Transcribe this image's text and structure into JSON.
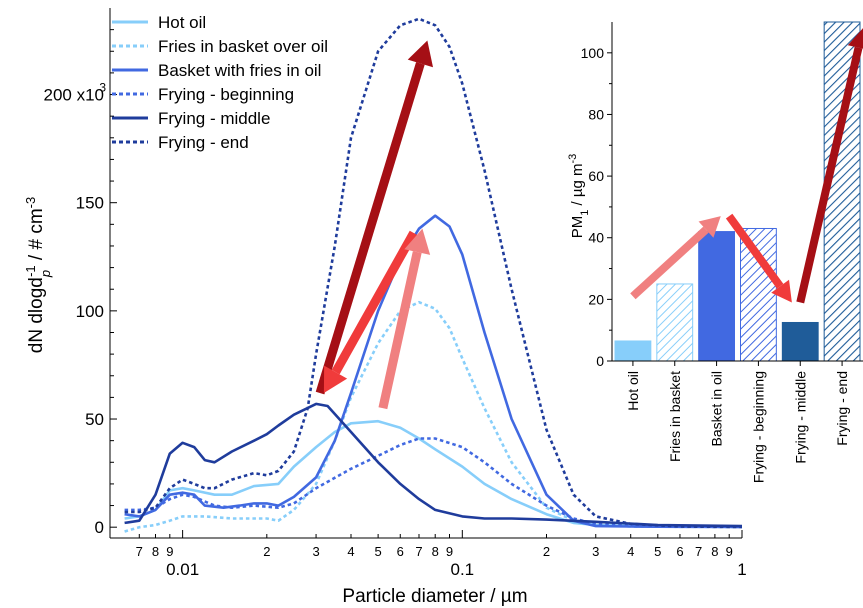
{
  "chart_data": [
    {
      "type": "line",
      "xscale": "log",
      "xlim": [
        0.0055,
        1.0
      ],
      "ylim": [
        -5000,
        240000
      ],
      "xlabel": "Particle diameter / µm",
      "ylabel": "dN dlogd",
      "ylabel_sub": "p",
      "ylabel_sup": "-1",
      "ylabel_tail": " / # cm",
      "ylabel_tail_sup": "-3",
      "ytick_values": [
        0,
        50000,
        100000,
        150000,
        200000
      ],
      "ytick_labels": [
        "0",
        "50",
        "100",
        "150",
        "200 x10"
      ],
      "ytick_exp_label": "3",
      "xtick_major_values": [
        0.01,
        0.1,
        1
      ],
      "xtick_major_labels": [
        "0.01",
        "0.1",
        "1"
      ],
      "xtick_minor_values": [
        0.007,
        0.008,
        0.009,
        0.02,
        0.03,
        0.04,
        0.05,
        0.06,
        0.07,
        0.08,
        0.09,
        0.2,
        0.3,
        0.4,
        0.5,
        0.6,
        0.7,
        0.8,
        0.9
      ],
      "xtick_minor_labels": [
        "7",
        "8",
        "9",
        "2",
        "3",
        "4",
        "5",
        "6",
        "7",
        "8",
        "9",
        "2",
        "3",
        "4",
        "5",
        "6",
        "7",
        "8",
        "9"
      ],
      "legend_position": "top-left",
      "series": [
        {
          "name": "Hot oil",
          "color": "#87CEFA",
          "dash": "solid",
          "x": [
            0.0062,
            0.007,
            0.008,
            0.009,
            0.01,
            0.011,
            0.013,
            0.015,
            0.018,
            0.022,
            0.025,
            0.03,
            0.035,
            0.04,
            0.05,
            0.06,
            0.07,
            0.08,
            0.1,
            0.12,
            0.15,
            0.2,
            0.25,
            0.3,
            0.4,
            0.6,
            1.0
          ],
          "y": [
            4000,
            5000,
            8000,
            17000,
            18000,
            17000,
            15000,
            15000,
            19000,
            20000,
            28000,
            37000,
            44000,
            48000,
            49000,
            46000,
            41000,
            36000,
            28000,
            20000,
            13000,
            6000,
            2000,
            1000,
            500,
            300,
            200
          ]
        },
        {
          "name": "Fries in basket over oil",
          "color": "#87CEFA",
          "dash": "dotted",
          "x": [
            0.0062,
            0.007,
            0.008,
            0.009,
            0.01,
            0.012,
            0.015,
            0.02,
            0.022,
            0.025,
            0.03,
            0.035,
            0.04,
            0.05,
            0.06,
            0.07,
            0.08,
            0.09,
            0.1,
            0.12,
            0.15,
            0.2,
            0.25,
            0.3,
            0.4,
            0.6,
            1.0
          ],
          "y": [
            -2000,
            0,
            1000,
            3000,
            5000,
            5000,
            4000,
            4000,
            3000,
            8000,
            20000,
            40000,
            60000,
            85000,
            100000,
            104000,
            101000,
            92000,
            78000,
            55000,
            30000,
            9000,
            3000,
            1000,
            300,
            200,
            100
          ]
        },
        {
          "name": "Basket with fries in oil",
          "color": "#4169E1",
          "dash": "solid",
          "x": [
            0.0062,
            0.007,
            0.008,
            0.009,
            0.01,
            0.011,
            0.012,
            0.014,
            0.016,
            0.018,
            0.02,
            0.022,
            0.025,
            0.03,
            0.035,
            0.04,
            0.05,
            0.06,
            0.07,
            0.08,
            0.09,
            0.1,
            0.12,
            0.15,
            0.2,
            0.25,
            0.3,
            0.4,
            0.6,
            1.0
          ],
          "y": [
            6000,
            5000,
            8000,
            15000,
            16000,
            15000,
            10000,
            9000,
            10000,
            11000,
            11000,
            10000,
            14000,
            23000,
            40000,
            62000,
            100000,
            124000,
            138000,
            144000,
            139000,
            126000,
            90000,
            50000,
            15000,
            3000,
            500,
            300,
            200,
            100
          ]
        },
        {
          "name": "Frying - beginning",
          "color": "#4169E1",
          "dash": "dotted",
          "x": [
            0.0062,
            0.007,
            0.008,
            0.009,
            0.01,
            0.011,
            0.013,
            0.015,
            0.018,
            0.022,
            0.025,
            0.03,
            0.04,
            0.05,
            0.06,
            0.07,
            0.08,
            0.1,
            0.12,
            0.15,
            0.2,
            0.25,
            0.3,
            0.4,
            0.6,
            1.0
          ],
          "y": [
            8000,
            8000,
            9000,
            13000,
            15000,
            14000,
            10000,
            9000,
            10000,
            9000,
            11000,
            18000,
            27000,
            33000,
            38000,
            41000,
            41000,
            37000,
            30000,
            20000,
            10000,
            4000,
            1500,
            500,
            300,
            200
          ]
        },
        {
          "name": "Frying - middle",
          "color": "#1F3C9C",
          "dash": "solid",
          "x": [
            0.0062,
            0.007,
            0.008,
            0.009,
            0.01,
            0.011,
            0.012,
            0.013,
            0.015,
            0.018,
            0.02,
            0.022,
            0.025,
            0.03,
            0.033,
            0.04,
            0.05,
            0.06,
            0.07,
            0.08,
            0.1,
            0.12,
            0.15,
            0.2,
            0.3,
            0.5,
            1.0
          ],
          "y": [
            2000,
            3000,
            15000,
            34000,
            39000,
            37000,
            31000,
            30000,
            35000,
            40000,
            43000,
            47000,
            52000,
            57000,
            56000,
            44000,
            30000,
            20000,
            13000,
            8000,
            5000,
            4000,
            4000,
            3500,
            2500,
            1000,
            500
          ]
        },
        {
          "name": "Frying - end",
          "color": "#1F3C9C",
          "dash": "dotted",
          "x": [
            0.0062,
            0.007,
            0.008,
            0.009,
            0.01,
            0.011,
            0.012,
            0.013,
            0.015,
            0.018,
            0.02,
            0.022,
            0.025,
            0.028,
            0.03,
            0.035,
            0.04,
            0.05,
            0.06,
            0.07,
            0.08,
            0.09,
            0.1,
            0.12,
            0.15,
            0.2,
            0.25,
            0.3,
            0.4,
            0.6,
            1.0
          ],
          "y": [
            7000,
            7000,
            9000,
            18000,
            22000,
            20000,
            18000,
            18000,
            22000,
            25000,
            24000,
            26000,
            35000,
            55000,
            80000,
            130000,
            180000,
            220000,
            232000,
            235000,
            232000,
            222000,
            205000,
            165000,
            110000,
            45000,
            15000,
            5000,
            1500,
            300,
            100
          ]
        }
      ],
      "arrows": [
        {
          "color": "#A50F15",
          "from": [
            0.031,
            62000
          ],
          "to": [
            0.075,
            225000
          ]
        },
        {
          "color": "#F03B3B",
          "from": [
            0.067,
            136000
          ],
          "to": [
            0.032,
            62000
          ]
        },
        {
          "color": "#F08080",
          "from": [
            0.052,
            55000
          ],
          "to": [
            0.072,
            138000
          ]
        }
      ]
    },
    {
      "type": "bar",
      "categories": [
        "Hot oil",
        "Fries in basket",
        "Basket in oil",
        "Frying - beginning",
        "Frying - middle",
        "Frying - end"
      ],
      "values": [
        6.5,
        25,
        42,
        43,
        12.5,
        110
      ],
      "colors": [
        "#87CEFA",
        "#87CEFA",
        "#4169E1",
        "#4169E1",
        "#1F5C99",
        "#1F5C99"
      ],
      "hatched": [
        false,
        true,
        false,
        true,
        false,
        true
      ],
      "ylabel": "PM",
      "ylabel_sub": "1",
      "ylabel_tail": " / µg m",
      "ylabel_tail_sup": "-3",
      "ylim": [
        0,
        110
      ],
      "ytick_values": [
        0,
        20,
        40,
        60,
        80,
        100
      ],
      "ytick_labels": [
        "0",
        "20",
        "40",
        "60",
        "80",
        "100"
      ],
      "arrows": [
        {
          "color": "#F08080",
          "from": [
            0,
            21
          ],
          "to": [
            2.1,
            47
          ]
        },
        {
          "color": "#F03B3B",
          "from": [
            2.3,
            47
          ],
          "to": [
            3.8,
            19
          ]
        },
        {
          "color": "#A50F15",
          "from": [
            4.0,
            19
          ],
          "to": [
            5.5,
            108
          ]
        }
      ]
    }
  ]
}
